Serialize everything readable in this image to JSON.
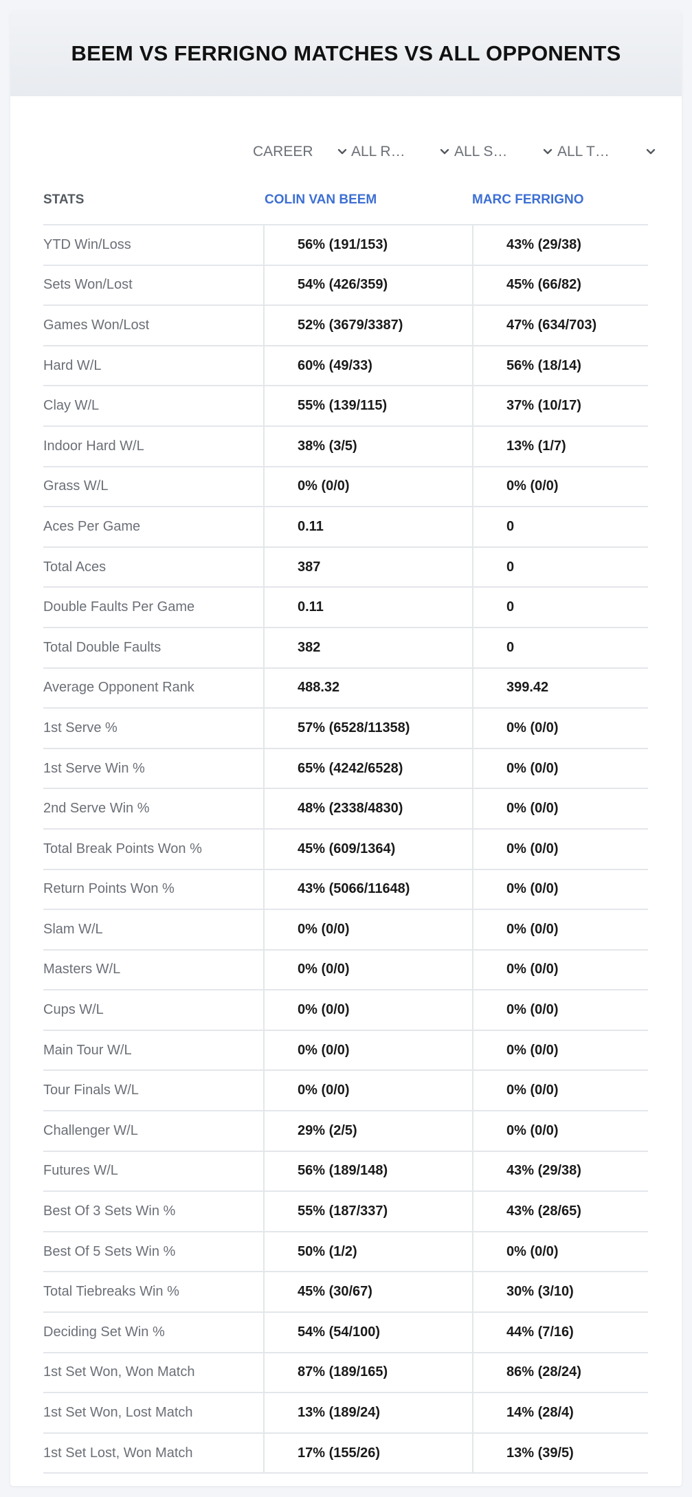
{
  "title": "BEEM VS FERRIGNO MATCHES VS ALL OPPONENTS",
  "filters": [
    {
      "selected": "CAREER"
    },
    {
      "selected": "ALL R…"
    },
    {
      "selected": "ALL S…"
    },
    {
      "selected": "ALL T…"
    }
  ],
  "table": {
    "headers": {
      "stats": "STATS",
      "player1": "COLIN VAN BEEM",
      "player2": "MARC FERRIGNO"
    },
    "rows": [
      {
        "label": "YTD Win/Loss",
        "p1": "56% (191/153)",
        "p2": "43% (29/38)"
      },
      {
        "label": "Sets Won/Lost",
        "p1": "54% (426/359)",
        "p2": "45% (66/82)"
      },
      {
        "label": "Games Won/Lost",
        "p1": "52% (3679/3387)",
        "p2": "47% (634/703)"
      },
      {
        "label": "Hard W/L",
        "p1": "60% (49/33)",
        "p2": "56% (18/14)"
      },
      {
        "label": "Clay W/L",
        "p1": "55% (139/115)",
        "p2": "37% (10/17)"
      },
      {
        "label": "Indoor Hard W/L",
        "p1": "38% (3/5)",
        "p2": "13% (1/7)"
      },
      {
        "label": "Grass W/L",
        "p1": "0% (0/0)",
        "p2": "0% (0/0)"
      },
      {
        "label": "Aces Per Game",
        "p1": "0.11",
        "p2": "0"
      },
      {
        "label": "Total Aces",
        "p1": "387",
        "p2": "0"
      },
      {
        "label": "Double Faults Per Game",
        "p1": "0.11",
        "p2": "0"
      },
      {
        "label": "Total Double Faults",
        "p1": "382",
        "p2": "0"
      },
      {
        "label": "Average Opponent Rank",
        "p1": "488.32",
        "p2": "399.42"
      },
      {
        "label": "1st Serve %",
        "p1": "57% (6528/11358)",
        "p2": "0% (0/0)"
      },
      {
        "label": "1st Serve Win %",
        "p1": "65% (4242/6528)",
        "p2": "0% (0/0)"
      },
      {
        "label": "2nd Serve Win %",
        "p1": "48% (2338/4830)",
        "p2": "0% (0/0)"
      },
      {
        "label": "Total Break Points Won %",
        "p1": "45% (609/1364)",
        "p2": "0% (0/0)"
      },
      {
        "label": "Return Points Won %",
        "p1": "43% (5066/11648)",
        "p2": "0% (0/0)"
      },
      {
        "label": "Slam W/L",
        "p1": "0% (0/0)",
        "p2": "0% (0/0)"
      },
      {
        "label": "Masters W/L",
        "p1": "0% (0/0)",
        "p2": "0% (0/0)"
      },
      {
        "label": "Cups W/L",
        "p1": "0% (0/0)",
        "p2": "0% (0/0)"
      },
      {
        "label": "Main Tour W/L",
        "p1": "0% (0/0)",
        "p2": "0% (0/0)"
      },
      {
        "label": "Tour Finals W/L",
        "p1": "0% (0/0)",
        "p2": "0% (0/0)"
      },
      {
        "label": "Challenger W/L",
        "p1": "29% (2/5)",
        "p2": "0% (0/0)"
      },
      {
        "label": "Futures W/L",
        "p1": "56% (189/148)",
        "p2": "43% (29/38)"
      },
      {
        "label": "Best Of 3 Sets Win %",
        "p1": "55% (187/337)",
        "p2": "43% (28/65)"
      },
      {
        "label": "Best Of 5 Sets Win %",
        "p1": "50% (1/2)",
        "p2": "0% (0/0)"
      },
      {
        "label": "Total Tiebreaks Win %",
        "p1": "45% (30/67)",
        "p2": "30% (3/10)"
      },
      {
        "label": "Deciding Set Win %",
        "p1": "54% (54/100)",
        "p2": "44% (7/16)"
      },
      {
        "label": "1st Set Won, Won Match",
        "p1": "87% (189/165)",
        "p2": "86% (28/24)"
      },
      {
        "label": "1st Set Won, Lost Match",
        "p1": "13% (189/24)",
        "p2": "14% (28/4)"
      },
      {
        "label": "1st Set Lost, Won Match",
        "p1": "17% (155/26)",
        "p2": "13% (39/5)"
      }
    ]
  },
  "colors": {
    "accent": "#3d6fd3",
    "label": "#6b6f76",
    "value": "#1a1a1a",
    "divider": "#e3e6ea"
  },
  "icons": {
    "filter_dropdown": "chevron-down-icon"
  }
}
